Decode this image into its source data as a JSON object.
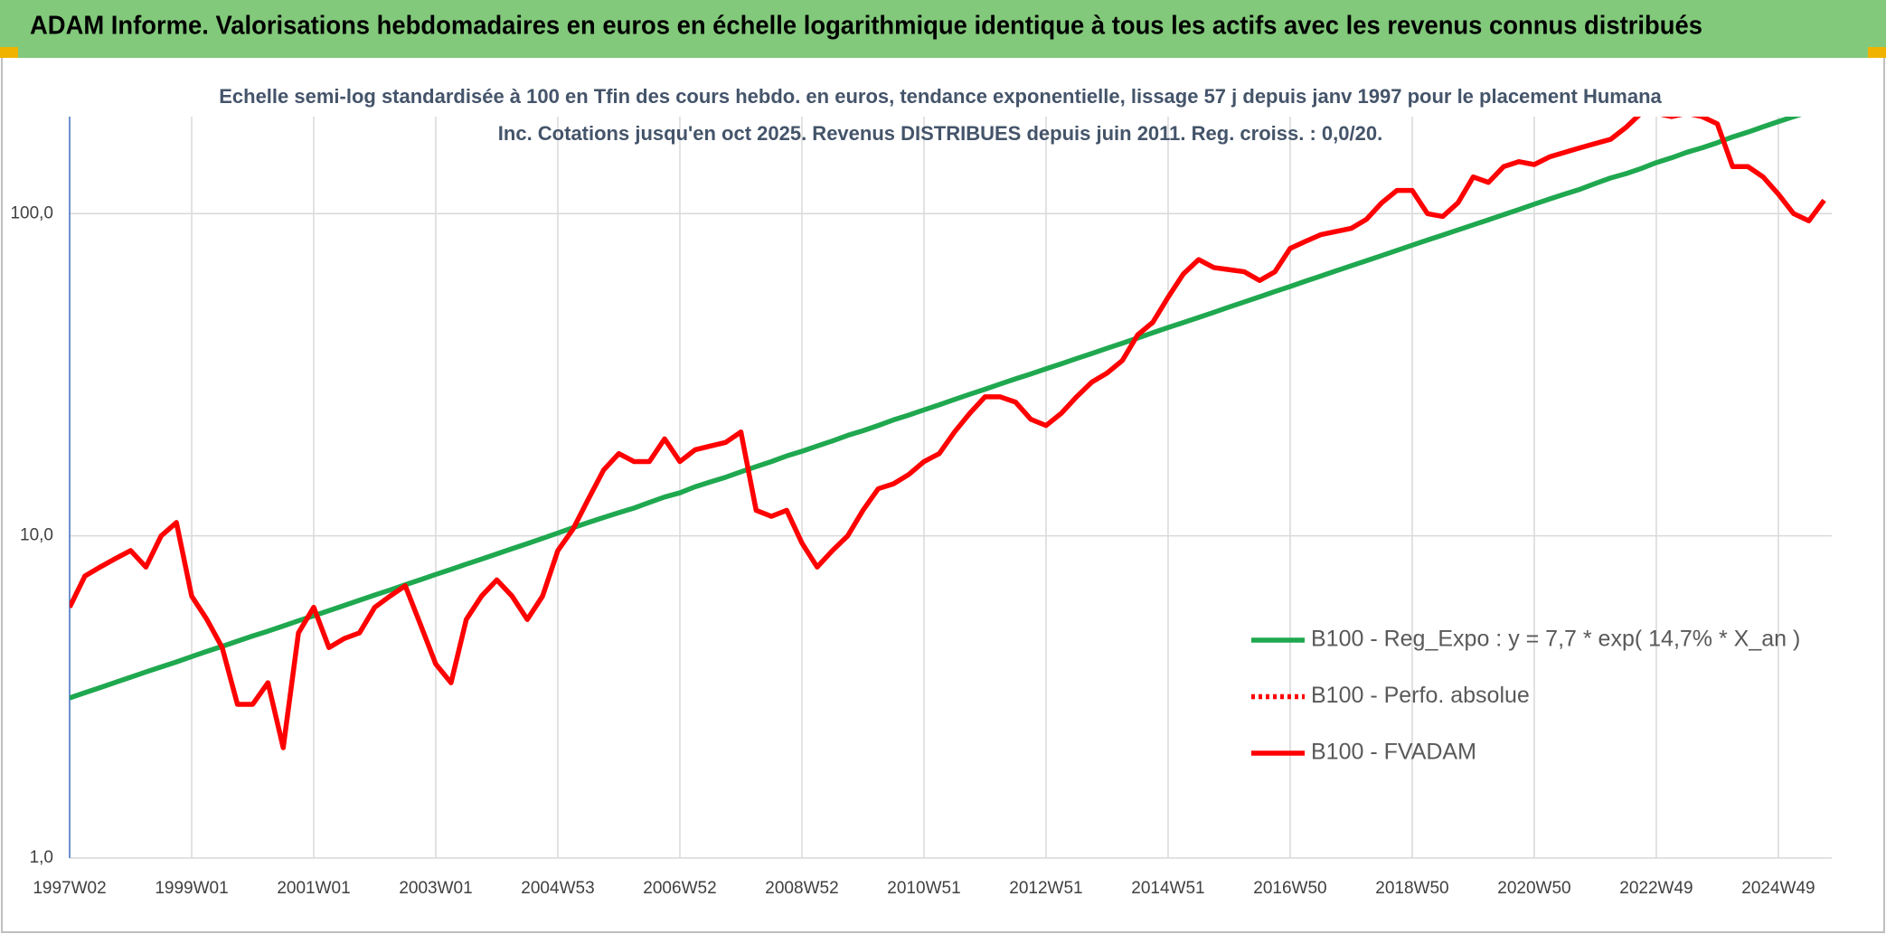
{
  "chart_data": {
    "type": "line",
    "title": "ADAM Informe. Valorisations hebdomadaires en euros en échelle logarithmique identique à tous les actifs avec les revenus connus distribués",
    "subtitle": "Echelle semi-log standardisée à 100 en Tfin des cours hebdo. en euros, tendance exponentielle, lissage 57 j depuis janv 1997 pour le placement Humana Inc. Cotations jusqu'en oct 2025. Revenus DISTRIBUES depuis juin 2011. Reg. croiss. : 0,0/20.",
    "categories": [
      "1997W02",
      null,
      null,
      null,
      null,
      null,
      null,
      null,
      "1999W01",
      null,
      null,
      null,
      null,
      null,
      null,
      null,
      "2001W01",
      null,
      null,
      null,
      null,
      null,
      null,
      null,
      "2003W01",
      null,
      null,
      null,
      null,
      null,
      null,
      null,
      "2004W53",
      null,
      null,
      null,
      null,
      null,
      null,
      null,
      "2006W52",
      null,
      null,
      null,
      null,
      null,
      null,
      null,
      "2008W52",
      null,
      null,
      null,
      null,
      null,
      null,
      null,
      "2010W51",
      null,
      null,
      null,
      null,
      null,
      null,
      null,
      "2012W51",
      null,
      null,
      null,
      null,
      null,
      null,
      null,
      "2014W51",
      null,
      null,
      null,
      null,
      null,
      null,
      null,
      "2016W50",
      null,
      null,
      null,
      null,
      null,
      null,
      null,
      "2018W50",
      null,
      null,
      null,
      null,
      null,
      null,
      null,
      "2020W50",
      null,
      null,
      null,
      null,
      null,
      null,
      null,
      "2022W49",
      null,
      null,
      null,
      null,
      null,
      null,
      null,
      "2024W49",
      null,
      null,
      null
    ],
    "series": [
      {
        "name": "B100 - Reg_Expo : y = 7,7 * exp( 14,7% *  X_an )",
        "color": "#1fa84f",
        "dash": "solid",
        "values": [
          3.14,
          3.26,
          3.38,
          3.51,
          3.64,
          3.78,
          3.92,
          4.06,
          4.22,
          4.38,
          4.54,
          4.71,
          4.89,
          5.06,
          5.25,
          5.45,
          5.65,
          5.86,
          6.08,
          6.31,
          6.55,
          6.79,
          7.05,
          7.31,
          7.59,
          7.87,
          8.17,
          8.47,
          8.79,
          9.12,
          9.46,
          9.82,
          10.2,
          10.6,
          11.0,
          11.4,
          11.8,
          12.2,
          12.7,
          13.2,
          13.6,
          14.2,
          14.7,
          15.2,
          15.8,
          16.4,
          17.0,
          17.7,
          18.3,
          19.0,
          19.7,
          20.5,
          21.2,
          22.0,
          22.9,
          23.7,
          24.6,
          25.5,
          26.5,
          27.5,
          28.5,
          29.6,
          30.7,
          31.8,
          33.0,
          34.2,
          35.5,
          36.8,
          38.2,
          39.6,
          41.1,
          42.7,
          44.3,
          45.9,
          47.6,
          49.4,
          51.3,
          53.2,
          55.2,
          57.3,
          59.4,
          61.7,
          64.0,
          66.4,
          68.9,
          71.4,
          74.1,
          76.9,
          79.8,
          82.8,
          85.8,
          89.0,
          92.3,
          95.7,
          99.3,
          103,
          107,
          111,
          115,
          119,
          124,
          129,
          133,
          138,
          144,
          149,
          155,
          160,
          166,
          173,
          179,
          186,
          193,
          200,
          207,
          215
        ]
      },
      {
        "name": "B100 - Perfo. absolue",
        "color": "#ff0000",
        "dash": "dotted",
        "values": [
          null,
          null,
          null,
          null,
          null,
          null,
          null,
          null,
          null,
          null,
          null,
          null,
          null,
          null,
          null,
          null,
          null,
          null,
          null,
          null,
          null,
          null,
          null,
          null,
          null,
          null,
          null,
          null,
          null,
          null,
          null,
          null,
          null,
          null,
          null,
          null,
          null,
          null,
          null,
          null,
          null,
          null,
          null,
          null,
          null,
          null,
          null,
          null,
          null,
          null,
          null,
          null,
          null,
          null,
          null,
          null,
          null,
          null,
          null,
          null,
          null,
          null,
          null,
          null,
          null,
          null,
          null,
          null,
          null,
          null,
          null,
          null,
          null,
          null,
          null,
          null,
          null,
          null,
          null,
          null,
          null,
          null,
          null,
          null,
          null,
          null,
          null,
          null,
          null,
          null,
          null,
          null,
          null,
          null,
          null,
          null,
          null,
          null,
          null,
          null,
          null,
          null,
          null,
          null,
          null,
          null,
          null,
          null,
          null,
          null,
          null,
          null,
          null,
          null,
          null,
          null
        ]
      },
      {
        "name": "B100 - FVADAM",
        "color": "#ff0000",
        "dash": "solid",
        "values": [
          6.0,
          7.5,
          8.0,
          8.5,
          9.0,
          8.0,
          10.0,
          11.0,
          6.5,
          5.5,
          4.5,
          3.0,
          3.0,
          3.5,
          2.2,
          5.0,
          6.0,
          4.5,
          4.8,
          5.0,
          6.0,
          6.5,
          7.0,
          5.3,
          4.0,
          3.5,
          5.5,
          6.5,
          7.3,
          6.5,
          5.5,
          6.5,
          9.0,
          10.5,
          13,
          16,
          18,
          17,
          17,
          20,
          17,
          18.5,
          19,
          19.5,
          21,
          12,
          11.5,
          12,
          9.5,
          8,
          9,
          10,
          12,
          14,
          14.5,
          15.5,
          17,
          18,
          21,
          24,
          27,
          27,
          26,
          23,
          22,
          24,
          27,
          30,
          32,
          35,
          42,
          46,
          55,
          65,
          72,
          68,
          67,
          66,
          62,
          66,
          78,
          82,
          86,
          88,
          90,
          96,
          108,
          118,
          118,
          100,
          98,
          108,
          130,
          125,
          140,
          145,
          142,
          150,
          155,
          160,
          165,
          170,
          185,
          205,
          205,
          200,
          205,
          200,
          190,
          140,
          140,
          130,
          115,
          100,
          95,
          110
        ]
      }
    ],
    "ylim": [
      1,
      200
    ],
    "yticks": [
      {
        "value": 1,
        "label": "1,0"
      },
      {
        "value": 10,
        "label": "10,0"
      },
      {
        "value": 100,
        "label": "100,0"
      }
    ],
    "log_y": true,
    "grid": true,
    "legend": "right"
  }
}
